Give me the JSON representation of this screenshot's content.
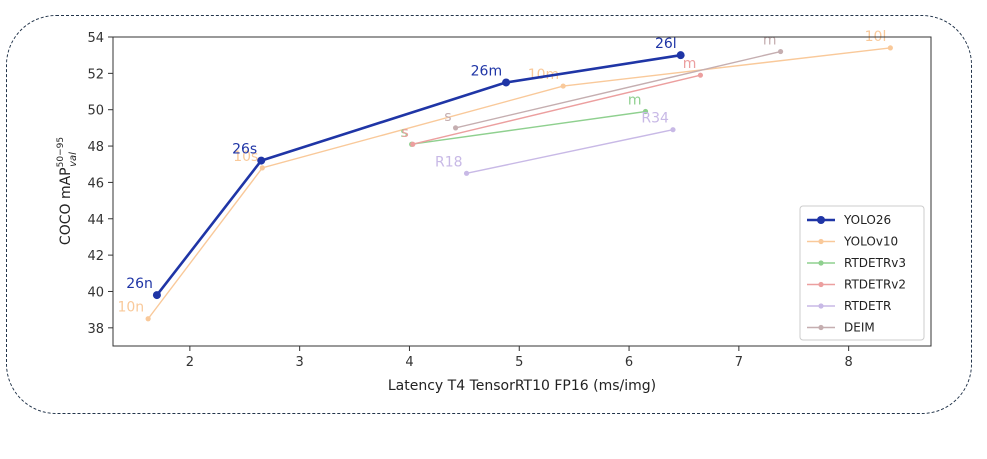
{
  "chart_data": {
    "type": "line",
    "xlabel": "Latency T4 TensorRT10 FP16 (ms/img)",
    "ylabel_main": "COCO mAP",
    "ylabel_sup": "50−95",
    "ylabel_sub": "val",
    "xlim": [
      1.3,
      8.75
    ],
    "ylim": [
      37,
      54
    ],
    "xticks": [
      2,
      3,
      4,
      5,
      6,
      7,
      8
    ],
    "yticks": [
      38,
      40,
      42,
      44,
      46,
      48,
      50,
      52,
      54
    ],
    "grid": false,
    "legend_position": "lower-right",
    "series": [
      {
        "name": "YOLO26",
        "color": "#1f35a6",
        "strong": true,
        "x": [
          1.7,
          2.65,
          4.88,
          6.47
        ],
        "y": [
          39.8,
          47.2,
          51.5,
          53.0
        ],
        "labels": [
          "26n",
          "26s",
          "26m",
          "26l"
        ]
      },
      {
        "name": "YOLOv10",
        "color": "#f9c99a",
        "strong": false,
        "x": [
          1.62,
          2.66,
          5.4,
          8.38
        ],
        "y": [
          38.5,
          46.8,
          51.3,
          53.4
        ],
        "labels": [
          "10n",
          "10s",
          "10m",
          "10l"
        ]
      },
      {
        "name": "RTDETRv3",
        "color": "#8fd08f",
        "strong": false,
        "x": [
          4.02,
          6.15
        ],
        "y": [
          48.1,
          49.9
        ],
        "labels": [
          "s",
          "m"
        ]
      },
      {
        "name": "RTDETRv2",
        "color": "#ec9f9f",
        "strong": false,
        "x": [
          4.03,
          6.65
        ],
        "y": [
          48.1,
          51.9
        ],
        "labels": [
          "s",
          "m"
        ]
      },
      {
        "name": "RTDETR",
        "color": "#c8b9e6",
        "strong": false,
        "x": [
          4.52,
          6.4
        ],
        "y": [
          46.5,
          48.9
        ],
        "labels": [
          "R18",
          "R34"
        ]
      },
      {
        "name": "DEIM",
        "color": "#c5aeb0",
        "strong": false,
        "x": [
          4.42,
          7.38
        ],
        "y": [
          49.0,
          53.2
        ],
        "labels": [
          "s",
          "m"
        ]
      }
    ]
  }
}
